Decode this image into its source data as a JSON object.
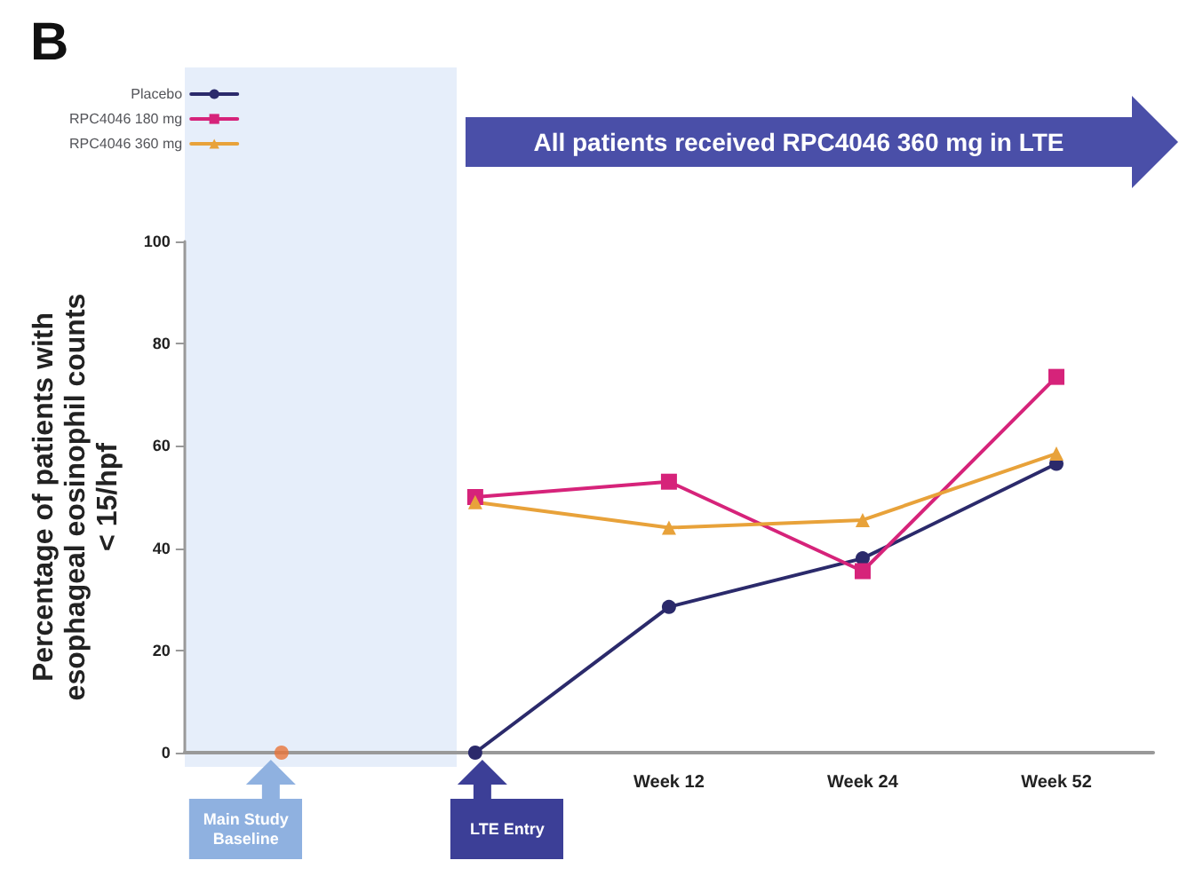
{
  "chart_data": {
    "type": "line",
    "title": "B",
    "ylabel": "Percentage of patients with esophageal eosinophil counts < 15/hpf",
    "categories": [
      null,
      null,
      "Week 12",
      "Week 24",
      "Week 52"
    ],
    "series": [
      {
        "name": "Placebo",
        "color": "#2b2a6b",
        "marker": "circle",
        "values": [
          null,
          0,
          28.5,
          38,
          56.5
        ]
      },
      {
        "name": "RPC4046 180 mg",
        "color": "#d6237a",
        "marker": "square",
        "values": [
          null,
          50,
          53,
          35.5,
          73.5
        ]
      },
      {
        "name": "RPC4046 360 mg",
        "color": "#e8a23a",
        "marker": "triangle",
        "values": [
          null,
          49,
          44,
          45.5,
          58.5
        ]
      },
      {
        "type": "scatter",
        "color": "#e8743a",
        "marker": "circle",
        "values": [
          0,
          null,
          null,
          null,
          null
        ]
      }
    ],
    "ylim": [
      0,
      100
    ],
    "yticks": [
      0,
      20,
      40,
      60,
      80,
      100
    ],
    "annotations": [
      "Main Study Baseline",
      "LTE Entry",
      "All patients received RPC4046 360 mg in LTE"
    ],
    "legend": "top left",
    "grid": false
  }
}
